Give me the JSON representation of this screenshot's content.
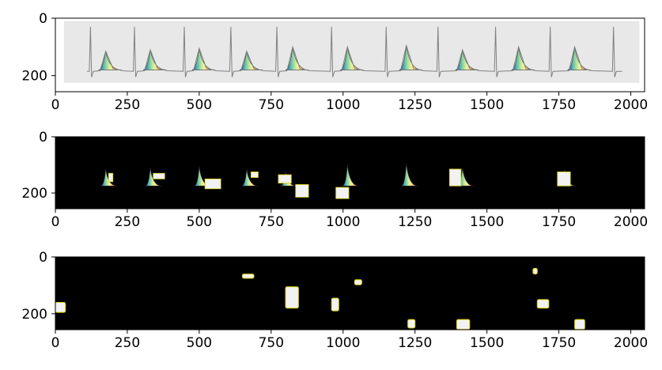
{
  "colors": {
    "figure_background": "#ffffff",
    "panel1_background": "#e8e8e8",
    "panel_mask_background": "#000000",
    "ecg_trace": "#808080",
    "axes_frame": "#000000",
    "blob_fill": "#f2f2f2",
    "blob_outline": "#d8d000",
    "spectral": [
      "#5e4fa2",
      "#3288bd",
      "#66c2a5",
      "#abdda4",
      "#e6f598",
      "#fee08b",
      "#fdae61",
      "#f46d43",
      "#d53e4f"
    ]
  },
  "chart_data": [
    {
      "type": "image",
      "description_of_content": "ECG trace with spectral-colored T-wave highlights",
      "xlim": [
        0,
        2048
      ],
      "ylim": [
        256,
        0
      ],
      "xticks": [
        0,
        250,
        500,
        750,
        1000,
        1250,
        1500,
        1750,
        2000
      ],
      "yticks": [
        0,
        200
      ],
      "xtick_labels": [
        "0",
        "250",
        "500",
        "750",
        "1000",
        "1250",
        "1500",
        "1750",
        "2000"
      ],
      "ytick_labels": [
        "0",
        "200"
      ],
      "gray_region": {
        "x": [
          30,
          2030
        ],
        "y": [
          10,
          225
        ]
      },
      "baseline_y": 185,
      "r_peaks_x": [
        122,
        275,
        448,
        610,
        770,
        960,
        1150,
        1330,
        1530,
        1720,
        1940
      ],
      "r_peak_top_y": 30,
      "t_waves": [
        {
          "x": 175,
          "peak_y": 115
        },
        {
          "x": 330,
          "peak_y": 110
        },
        {
          "x": 500,
          "peak_y": 105
        },
        {
          "x": 665,
          "peak_y": 115
        },
        {
          "x": 825,
          "peak_y": 100
        },
        {
          "x": 1015,
          "peak_y": 100
        },
        {
          "x": 1220,
          "peak_y": 95
        },
        {
          "x": 1415,
          "peak_y": 110
        },
        {
          "x": 1610,
          "peak_y": 100
        },
        {
          "x": 1805,
          "peak_y": 100
        }
      ]
    },
    {
      "type": "image",
      "description_of_content": "masked segments around T-waves on black background",
      "xlim": [
        0,
        2048
      ],
      "ylim": [
        256,
        0
      ],
      "xticks": [
        0,
        250,
        500,
        750,
        1000,
        1250,
        1500,
        1750,
        2000
      ],
      "yticks": [
        0,
        200
      ],
      "xtick_labels": [
        "0",
        "250",
        "500",
        "750",
        "1000",
        "1250",
        "1500",
        "1750",
        "2000"
      ],
      "ytick_labels": [
        "0",
        "200"
      ],
      "segments": [
        {
          "x": 175,
          "peak_y": 115,
          "boxes": [
            [
              185,
              130,
              15,
              30
            ]
          ]
        },
        {
          "x": 330,
          "peak_y": 110,
          "boxes": [
            [
              340,
              130,
              40,
              20
            ]
          ]
        },
        {
          "x": 500,
          "peak_y": 105,
          "boxes": [
            [
              520,
              150,
              55,
              35
            ]
          ]
        },
        {
          "x": 665,
          "peak_y": 115,
          "boxes": [
            [
              680,
              125,
              25,
              20
            ]
          ]
        },
        {
          "x": 800,
          "peak_y": 125,
          "boxes": [
            [
              775,
              135,
              45,
              30
            ],
            [
              835,
              170,
              45,
              45
            ]
          ]
        },
        {
          "x": 1015,
          "peak_y": 100,
          "boxes": [
            [
              975,
              180,
              45,
              40
            ]
          ]
        },
        {
          "x": 1220,
          "peak_y": 95,
          "boxes": []
        },
        {
          "x": 1415,
          "peak_y": 110,
          "boxes": [
            [
              1370,
              115,
              40,
              60
            ]
          ]
        },
        {
          "x": 1770,
          "peak_y": 115,
          "boxes": [
            [
              1745,
              125,
              45,
              50
            ]
          ]
        }
      ]
    },
    {
      "type": "image",
      "description_of_content": "sparse white blobs on black background",
      "xlim": [
        0,
        2048
      ],
      "ylim": [
        256,
        0
      ],
      "xticks": [
        0,
        250,
        500,
        750,
        1000,
        1250,
        1500,
        1750,
        2000
      ],
      "yticks": [
        0,
        200
      ],
      "xtick_labels": [
        "0",
        "250",
        "500",
        "750",
        "1000",
        "1250",
        "1500",
        "1750",
        "2000"
      ],
      "ytick_labels": [
        "0",
        "200"
      ],
      "blobs": [
        {
          "x": 0,
          "y": 160,
          "w": 35,
          "h": 35
        },
        {
          "x": 650,
          "y": 60,
          "w": 40,
          "h": 15
        },
        {
          "x": 800,
          "y": 105,
          "w": 45,
          "h": 75
        },
        {
          "x": 960,
          "y": 145,
          "w": 25,
          "h": 45
        },
        {
          "x": 1040,
          "y": 80,
          "w": 25,
          "h": 18
        },
        {
          "x": 1225,
          "y": 220,
          "w": 25,
          "h": 30
        },
        {
          "x": 1395,
          "y": 220,
          "w": 45,
          "h": 35
        },
        {
          "x": 1660,
          "y": 40,
          "w": 15,
          "h": 20
        },
        {
          "x": 1675,
          "y": 150,
          "w": 40,
          "h": 30
        },
        {
          "x": 1805,
          "y": 220,
          "w": 35,
          "h": 35
        }
      ]
    }
  ]
}
